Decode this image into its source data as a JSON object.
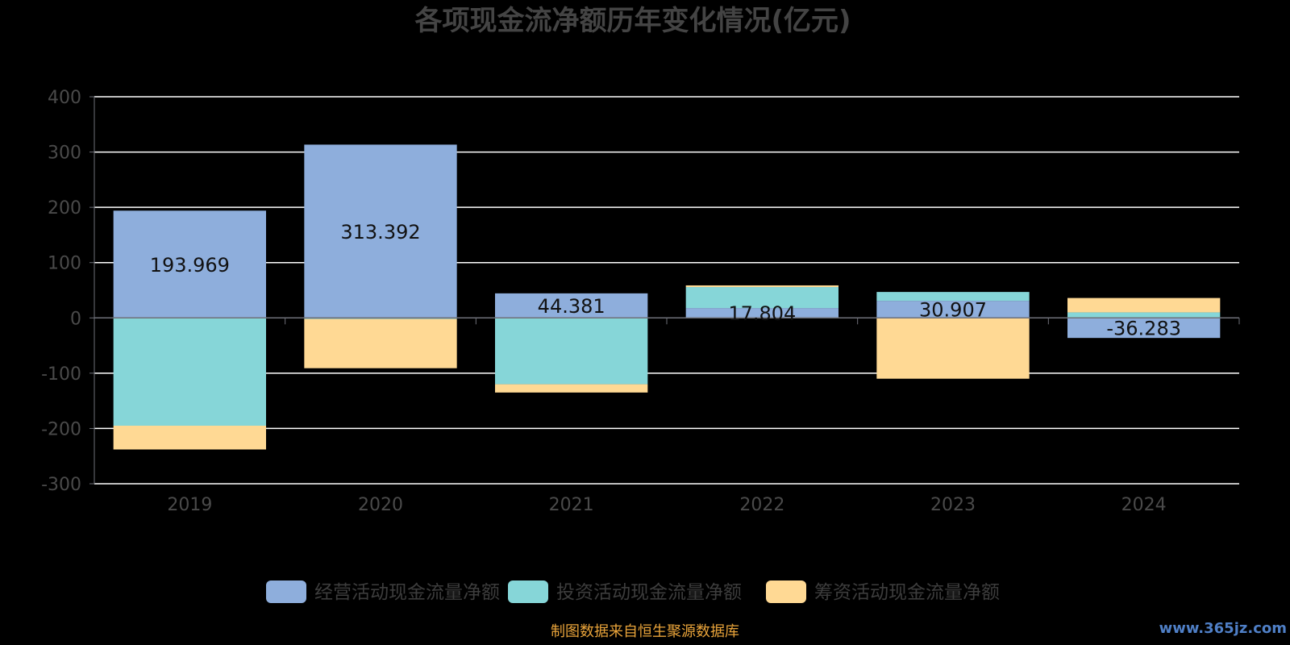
{
  "chart_data": {
    "type": "bar",
    "stacked": true,
    "title": "各项现金流净额历年变化情况(亿元)",
    "categories": [
      "2019",
      "2020",
      "2021",
      "2022",
      "2023",
      "2024"
    ],
    "ylim": [
      -300,
      400
    ],
    "yticks": [
      400,
      300,
      200,
      100,
      0,
      -100,
      -200,
      -300
    ],
    "grid": true,
    "legend_position": "bottom",
    "series": [
      {
        "name": "经营活动现金流量净额",
        "color": "#8eaedc",
        "values": [
          193.969,
          313.392,
          44.381,
          17.804,
          30.907,
          -36.283
        ],
        "labels": [
          "193.969",
          "313.392",
          "44.381",
          "17.804",
          "30.907",
          "-36.283"
        ]
      },
      {
        "name": "投资活动现金流量净额",
        "color": "#86d6d8",
        "values": [
          -195,
          -2,
          -120,
          38,
          16,
          10
        ]
      },
      {
        "name": "筹资活动现金流量净额",
        "color": "#ffd994",
        "values": [
          -43,
          -89,
          -15,
          3,
          -110,
          26
        ]
      }
    ]
  },
  "footer": {
    "source": "制图数据来自恒生聚源数据库",
    "watermark": "www.365jz.com"
  }
}
